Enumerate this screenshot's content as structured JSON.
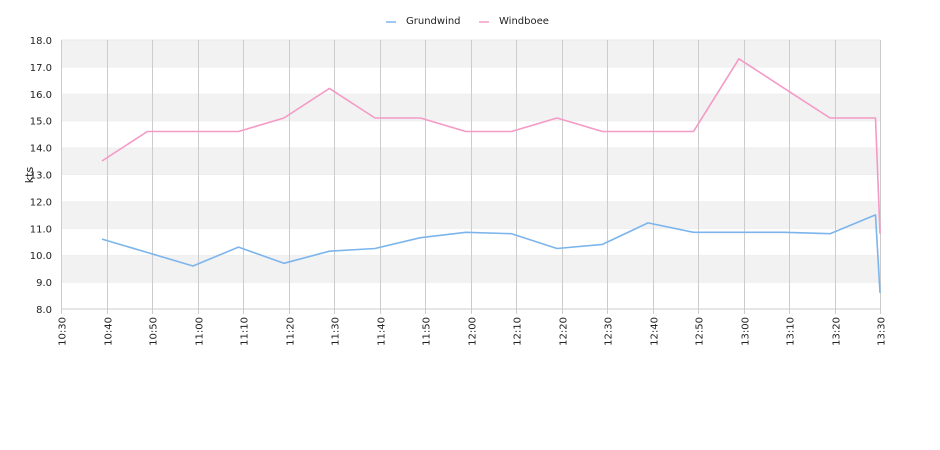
{
  "chart_data": {
    "type": "line",
    "title": "",
    "xlabel": "",
    "ylabel": "kts",
    "ylim": [
      8.0,
      18.0
    ],
    "yticks": [
      "8.0",
      "9.0",
      "10.0",
      "11.0",
      "12.0",
      "13.0",
      "14.0",
      "15.0",
      "16.0",
      "17.0",
      "18.0"
    ],
    "xlim": [
      "10:30",
      "13:30"
    ],
    "xticks": [
      "10:30",
      "10:40",
      "10:50",
      "11:00",
      "11:10",
      "11:20",
      "11:30",
      "11:40",
      "11:50",
      "12:00",
      "12:10",
      "12:20",
      "12:30",
      "12:40",
      "12:50",
      "13:00",
      "13:10",
      "13:20",
      "13:30"
    ],
    "grid": true,
    "legend_position": "top-center",
    "series": [
      {
        "name": "Grundwind",
        "color": "#7cb5ec",
        "points": [
          [
            "10:39",
            10.6
          ],
          [
            "10:49",
            10.1
          ],
          [
            "10:59",
            9.6
          ],
          [
            "11:09",
            10.3
          ],
          [
            "11:19",
            9.7
          ],
          [
            "11:29",
            10.15
          ],
          [
            "11:39",
            10.25
          ],
          [
            "11:49",
            10.65
          ],
          [
            "11:59",
            10.85
          ],
          [
            "12:09",
            10.8
          ],
          [
            "12:19",
            10.25
          ],
          [
            "12:29",
            10.4
          ],
          [
            "12:39",
            11.2
          ],
          [
            "12:49",
            10.85
          ],
          [
            "12:59",
            10.85
          ],
          [
            "13:09",
            10.85
          ],
          [
            "13:19",
            10.8
          ],
          [
            "13:29",
            11.5
          ],
          [
            "13:30",
            8.6
          ]
        ]
      },
      {
        "name": "Windboee",
        "color": "#f49ac6",
        "points": [
          [
            "10:39",
            13.5
          ],
          [
            "10:49",
            14.6
          ],
          [
            "10:59",
            14.6
          ],
          [
            "11:09",
            14.6
          ],
          [
            "11:19",
            15.1
          ],
          [
            "11:29",
            16.2
          ],
          [
            "11:39",
            15.1
          ],
          [
            "11:49",
            15.1
          ],
          [
            "11:59",
            14.6
          ],
          [
            "12:09",
            14.6
          ],
          [
            "12:19",
            15.1
          ],
          [
            "12:29",
            14.6
          ],
          [
            "12:39",
            14.6
          ],
          [
            "12:49",
            14.6
          ],
          [
            "12:59",
            17.3
          ],
          [
            "13:09",
            16.2
          ],
          [
            "13:19",
            15.1
          ],
          [
            "13:29",
            15.1
          ],
          [
            "13:30",
            10.8
          ]
        ]
      }
    ]
  }
}
